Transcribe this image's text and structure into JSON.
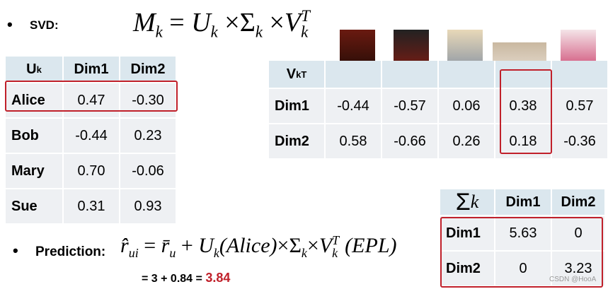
{
  "bullets": {
    "svd": "SVD:",
    "prediction": "Prediction:"
  },
  "svd_formula": [
    "M",
    "k",
    "=",
    "U",
    "k",
    "×",
    "Σ",
    "k",
    "×",
    "V",
    "k",
    "T"
  ],
  "u_table": {
    "header": {
      "symbol": "U",
      "subscript": "k",
      "columns": [
        "Dim1",
        "Dim2"
      ]
    },
    "rows": [
      [
        "Alice",
        "0.47",
        "-0.30"
      ],
      [
        "Bob",
        "-0.44",
        "0.23"
      ],
      [
        "Mary",
        "0.70",
        "-0.06"
      ],
      [
        "Sue",
        "0.31",
        "0.93"
      ]
    ]
  },
  "v_table": {
    "header": {
      "symbol": "V",
      "subscript": "k",
      "superscript": "T"
    },
    "rows": [
      [
        "Dim1",
        "-0.44",
        "-0.57",
        "0.06",
        "0.38",
        "0.57"
      ],
      [
        "Dim2",
        "0.58",
        "-0.66",
        "0.26",
        "0.18",
        "-0.36"
      ]
    ]
  },
  "sigma_table": {
    "header": {
      "symbol": "Σ",
      "subscript": "k",
      "columns": [
        "Dim1",
        "Dim2"
      ]
    },
    "rows": [
      [
        "Dim1",
        "5.63",
        "0"
      ],
      [
        "Dim2",
        "0",
        "3.23"
      ]
    ]
  },
  "prediction_formula": [
    "r̂",
    "ui",
    "=",
    "r̄",
    "u",
    "+",
    "U",
    "k",
    "(Alice)",
    "×",
    "Σ",
    "k",
    "×",
    "V",
    "k",
    "T",
    "(EPL)"
  ],
  "result": {
    "expression": "= 3 + 0.84 =",
    "value": "3.84"
  },
  "watermark": "CSDN @HooA"
}
